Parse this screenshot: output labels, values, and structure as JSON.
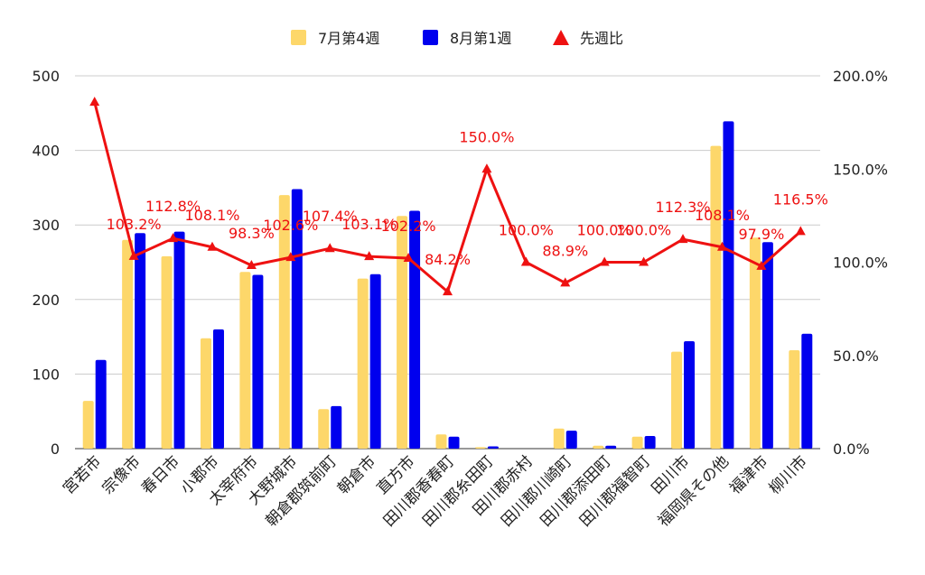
{
  "chart_data": {
    "type": "bar",
    "categories": [
      "宮若市",
      "宗像市",
      "春日市",
      "小郡市",
      "太宰府市",
      "大野城市",
      "朝倉郡筑前町",
      "朝倉市",
      "直方市",
      "田川郡香春町",
      "田川郡糸田町",
      "田川郡赤村",
      "田川郡川崎町",
      "田川郡添田町",
      "田川郡福智町",
      "田川市",
      "福岡県その他",
      "福津市",
      "柳川市"
    ],
    "series": [
      {
        "name": "7月第4週",
        "type": "bar",
        "axis": "left",
        "color": "#fdd76a",
        "values": [
          64,
          280,
          258,
          148,
          237,
          340,
          53,
          228,
          312,
          19,
          2,
          0,
          27,
          4,
          16,
          130,
          406,
          283,
          132
        ]
      },
      {
        "name": "8月第1週",
        "type": "bar",
        "axis": "left",
        "color": "#0000ee",
        "values": [
          119,
          289,
          291,
          160,
          233,
          348,
          57,
          234,
          319,
          16,
          3,
          0,
          24,
          4,
          17,
          144,
          439,
          277,
          154
        ]
      },
      {
        "name": "先週比",
        "type": "line",
        "axis": "right",
        "color": "#ee1111",
        "marker": "triangle",
        "values": [
          185.9,
          103.2,
          112.8,
          108.1,
          98.3,
          102.6,
          107.4,
          103.1,
          102.2,
          84.2,
          150.0,
          100.0,
          88.9,
          100.0,
          100.0,
          112.3,
          108.1,
          97.9,
          116.5
        ],
        "labels": [
          "",
          "103.2%",
          "112.8%",
          "108.1%",
          "98.3%",
          "102.6%",
          "107.4%",
          "103.1%",
          "102.2%",
          "84.2%",
          "150.0%",
          "100.0%",
          "88.9%",
          "100.0%",
          "100.0%",
          "112.3%",
          "108.1%",
          "97.9%",
          "116.5%"
        ]
      }
    ],
    "y_left": {
      "ylim": [
        0,
        500
      ],
      "ticks": [
        "0",
        "100",
        "200",
        "300",
        "400",
        "500"
      ]
    },
    "y_right": {
      "ylim": [
        0,
        200
      ],
      "ticks": [
        "0.0%",
        "50.0%",
        "100.0%",
        "150.0%",
        "200.0%"
      ]
    },
    "grid": true,
    "legend": "top-center"
  }
}
